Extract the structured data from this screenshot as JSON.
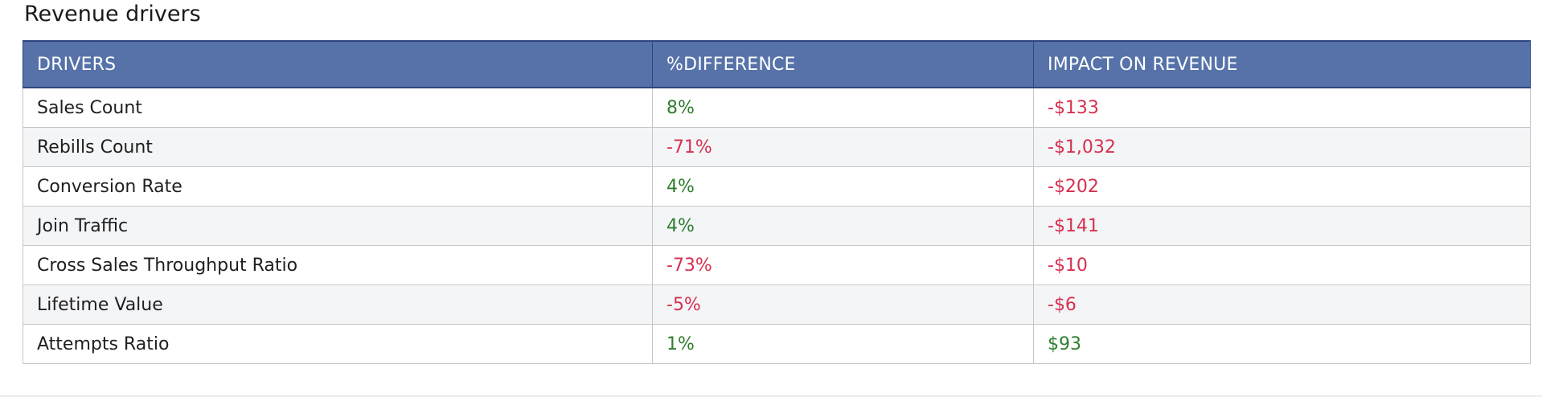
{
  "title": "Revenue drivers",
  "columns": [
    "DRIVERS",
    "%DIFFERENCE",
    "IMPACT ON REVENUE"
  ],
  "colors": {
    "header_bg": "#5672a9",
    "positive": "#2f7d2f",
    "negative": "#d6304f"
  },
  "rows": [
    {
      "driver": "Sales Count",
      "difference": "8%",
      "impact": "-$133"
    },
    {
      "driver": "Rebills Count",
      "difference": "-71%",
      "impact": "-$1,032"
    },
    {
      "driver": "Conversion Rate",
      "difference": "4%",
      "impact": "-$202"
    },
    {
      "driver": "Join Traffic",
      "difference": "4%",
      "impact": "-$141"
    },
    {
      "driver": "Cross Sales Throughput Ratio",
      "difference": "-73%",
      "impact": "-$10"
    },
    {
      "driver": "Lifetime Value",
      "difference": "-5%",
      "impact": "-$6"
    },
    {
      "driver": "Attempts Ratio",
      "difference": "1%",
      "impact": "$93"
    }
  ]
}
